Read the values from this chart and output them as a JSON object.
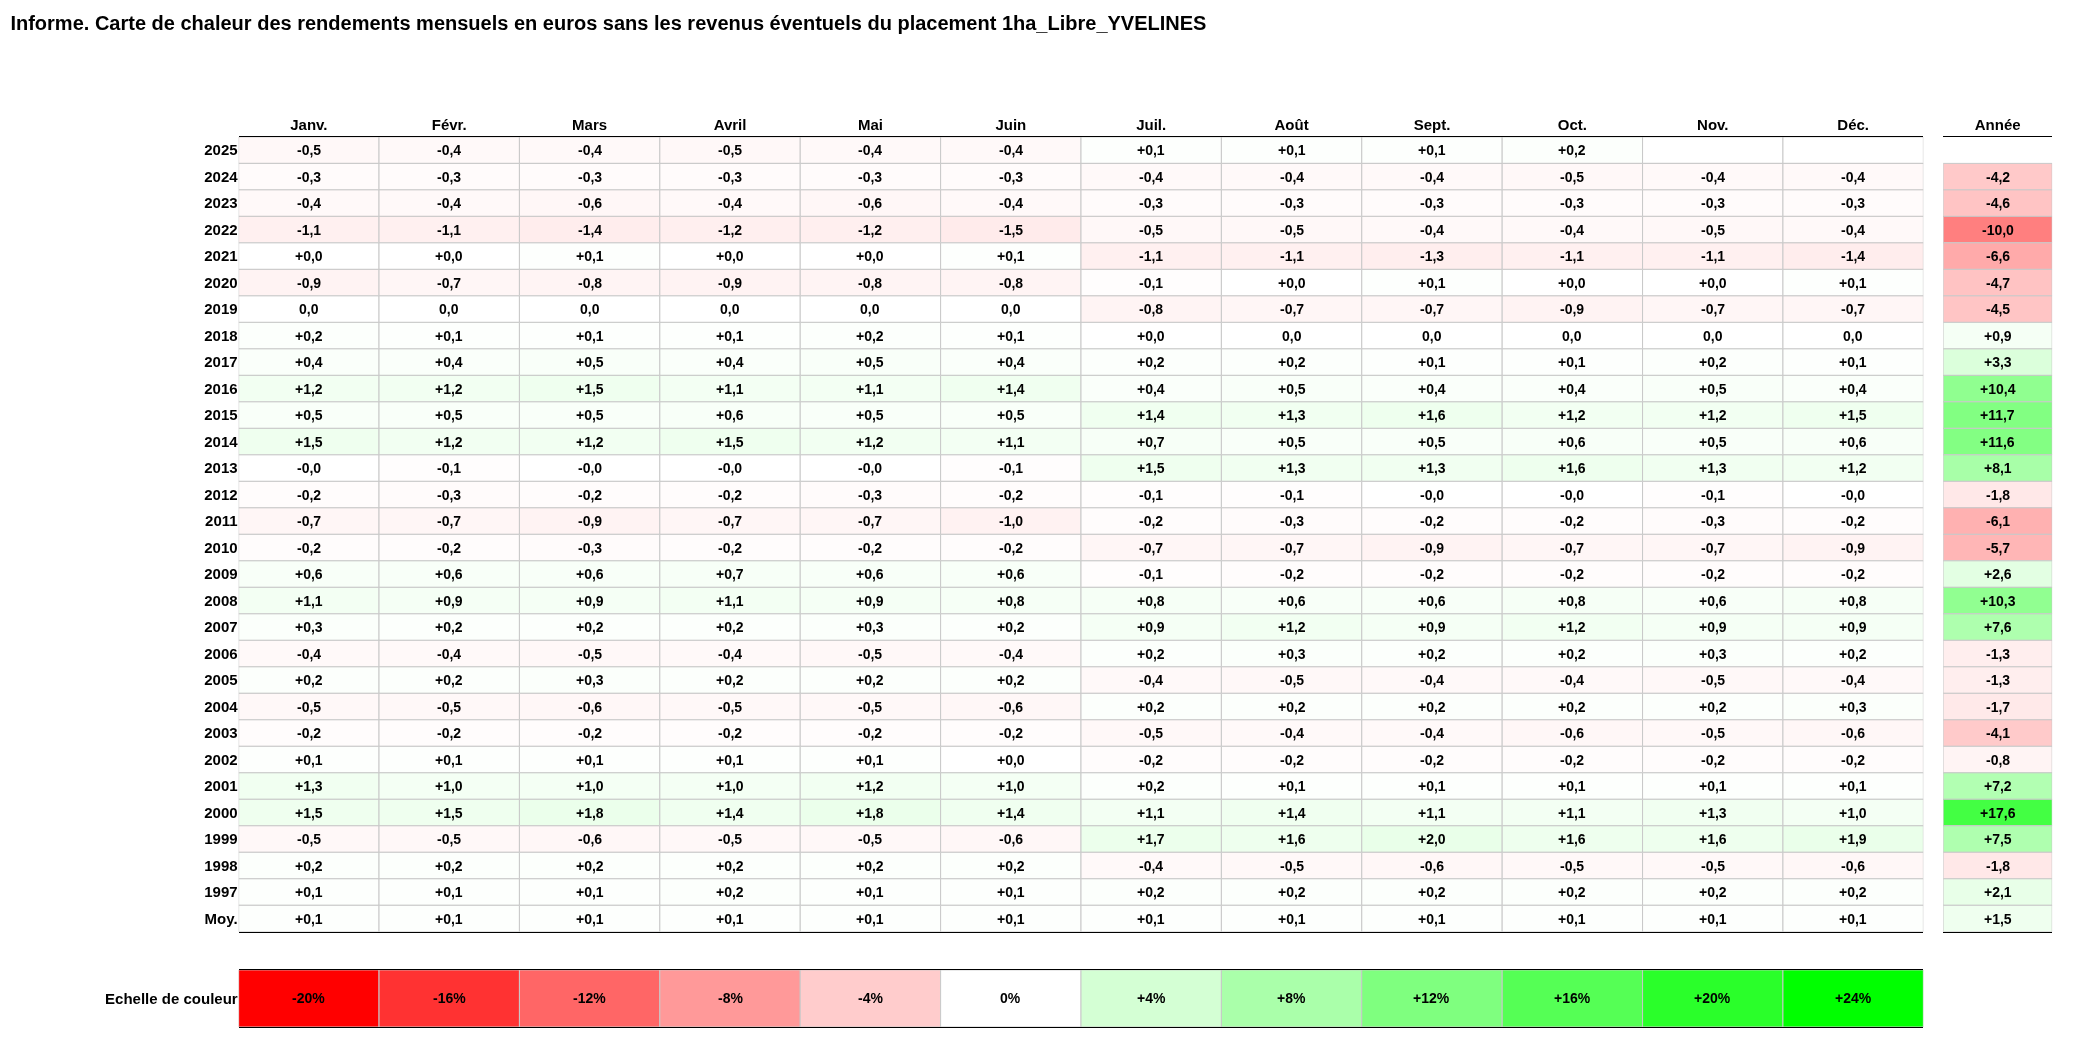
{
  "chart_data": [
    {
      "type": "heatmap",
      "title": "Informe. Carte de chaleur des rendements mensuels en euros sans les revenus éventuels du placement 1ha_Libre_YVELINES",
      "categories": [
        "Janv.",
        "Févr.",
        "Mars",
        "Avril",
        "Mai",
        "Juin",
        "Juil.",
        "Août",
        "Sept.",
        "Oct.",
        "Nov.",
        "Déc."
      ],
      "y_categories": [
        "2025",
        "2024",
        "2023",
        "2022",
        "2021",
        "2020",
        "2019",
        "2018",
        "2017",
        "2016",
        "2015",
        "2014",
        "2013",
        "2012",
        "2011",
        "2010",
        "2009",
        "2008",
        "2007",
        "2006",
        "2005",
        "2004",
        "2003",
        "2002",
        "2001",
        "2000",
        "1999",
        "1998",
        "1997",
        "Moy."
      ],
      "cells": [
        [
          -0.5,
          -0.4,
          -0.4,
          -0.5,
          -0.4,
          -0.4,
          0.1,
          0.1,
          0.1,
          0.2,
          null,
          null
        ],
        [
          -0.3,
          -0.3,
          -0.3,
          -0.3,
          -0.3,
          -0.3,
          -0.4,
          -0.4,
          -0.4,
          -0.5,
          -0.4,
          -0.4
        ],
        [
          -0.4,
          -0.4,
          -0.6,
          -0.4,
          -0.6,
          -0.4,
          -0.3,
          -0.3,
          -0.3,
          -0.3,
          -0.3,
          -0.3
        ],
        [
          -1.1,
          -1.1,
          -1.4,
          -1.2,
          -1.2,
          -1.5,
          -0.5,
          -0.5,
          -0.4,
          -0.4,
          -0.5,
          -0.4
        ],
        [
          0.0,
          0.0,
          0.1,
          0.0,
          0.0,
          0.1,
          -1.1,
          -1.1,
          -1.3,
          -1.1,
          -1.1,
          -1.4
        ],
        [
          -0.9,
          -0.7,
          -0.8,
          -0.9,
          -0.8,
          -0.8,
          -0.1,
          0.0,
          0.1,
          0.0,
          0.0,
          0.1
        ],
        [
          0.0,
          0.0,
          0.0,
          0.0,
          0.0,
          0.0,
          -0.8,
          -0.7,
          -0.7,
          -0.9,
          -0.7,
          -0.7
        ],
        [
          0.2,
          0.1,
          0.1,
          0.1,
          0.2,
          0.1,
          0.0,
          0.0,
          0.0,
          0.0,
          0.0,
          0.0
        ],
        [
          0.4,
          0.4,
          0.5,
          0.4,
          0.5,
          0.4,
          0.2,
          0.2,
          0.1,
          0.1,
          0.2,
          0.1
        ],
        [
          1.2,
          1.2,
          1.5,
          1.1,
          1.1,
          1.4,
          0.4,
          0.5,
          0.4,
          0.4,
          0.5,
          0.4
        ],
        [
          0.5,
          0.5,
          0.5,
          0.6,
          0.5,
          0.5,
          1.4,
          1.3,
          1.6,
          1.2,
          1.2,
          1.5
        ],
        [
          1.5,
          1.2,
          1.2,
          1.5,
          1.2,
          1.1,
          0.7,
          0.5,
          0.5,
          0.6,
          0.5,
          0.6
        ],
        [
          0.0,
          -0.1,
          0.0,
          0.0,
          0.0,
          -0.1,
          1.5,
          1.3,
          1.3,
          1.6,
          1.3,
          1.2
        ],
        [
          -0.2,
          -0.3,
          -0.2,
          -0.2,
          -0.3,
          -0.2,
          -0.1,
          -0.1,
          0.0,
          0.0,
          -0.1,
          0.0
        ],
        [
          -0.7,
          -0.7,
          -0.9,
          -0.7,
          -0.7,
          -1.0,
          -0.2,
          -0.3,
          -0.2,
          -0.2,
          -0.3,
          -0.2
        ],
        [
          -0.2,
          -0.2,
          -0.3,
          -0.2,
          -0.2,
          -0.2,
          -0.7,
          -0.7,
          -0.9,
          -0.7,
          -0.7,
          -0.9
        ],
        [
          0.6,
          0.6,
          0.6,
          0.7,
          0.6,
          0.6,
          -0.1,
          -0.2,
          -0.2,
          -0.2,
          -0.2,
          -0.2
        ],
        [
          1.1,
          0.9,
          0.9,
          1.1,
          0.9,
          0.8,
          0.8,
          0.6,
          0.6,
          0.8,
          0.6,
          0.8
        ],
        [
          0.3,
          0.2,
          0.2,
          0.2,
          0.3,
          0.2,
          0.9,
          1.2,
          0.9,
          1.2,
          0.9,
          0.9
        ],
        [
          -0.4,
          -0.4,
          -0.5,
          -0.4,
          -0.5,
          -0.4,
          0.2,
          0.3,
          0.2,
          0.2,
          0.3,
          0.2
        ],
        [
          0.2,
          0.2,
          0.3,
          0.2,
          0.2,
          0.2,
          -0.4,
          -0.5,
          -0.4,
          -0.4,
          -0.5,
          -0.4
        ],
        [
          -0.5,
          -0.5,
          -0.6,
          -0.5,
          -0.5,
          -0.6,
          0.2,
          0.2,
          0.2,
          0.2,
          0.2,
          0.3
        ],
        [
          -0.2,
          -0.2,
          -0.2,
          -0.2,
          -0.2,
          -0.2,
          -0.5,
          -0.4,
          -0.4,
          -0.6,
          -0.5,
          -0.6
        ],
        [
          0.1,
          0.1,
          0.1,
          0.1,
          0.1,
          0.0,
          -0.2,
          -0.2,
          -0.2,
          -0.2,
          -0.2,
          -0.2
        ],
        [
          1.3,
          1.0,
          1.0,
          1.0,
          1.2,
          1.0,
          0.2,
          0.1,
          0.1,
          0.1,
          0.1,
          0.1
        ],
        [
          1.5,
          1.5,
          1.8,
          1.4,
          1.8,
          1.4,
          1.1,
          1.4,
          1.1,
          1.1,
          1.3,
          1.0
        ],
        [
          -0.5,
          -0.5,
          -0.6,
          -0.5,
          -0.5,
          -0.6,
          1.7,
          1.6,
          2.0,
          1.6,
          1.6,
          1.9
        ],
        [
          0.2,
          0.2,
          0.2,
          0.2,
          0.2,
          0.2,
          -0.4,
          -0.5,
          -0.6,
          -0.5,
          -0.5,
          -0.6
        ],
        [
          0.1,
          0.1,
          0.1,
          0.2,
          0.1,
          0.1,
          0.2,
          0.2,
          0.2,
          0.2,
          0.2,
          0.2
        ],
        [
          0.1,
          0.1,
          0.1,
          0.1,
          0.1,
          0.1,
          0.1,
          0.1,
          0.1,
          0.1,
          0.1,
          0.1
        ]
      ],
      "cell_labels": [
        [
          "-0,5",
          "-0,4",
          "-0,4",
          "-0,5",
          "-0,4",
          "-0,4",
          "+0,1",
          "+0,1",
          "+0,1",
          "+0,2",
          null,
          null
        ],
        [
          "-0,3",
          "-0,3",
          "-0,3",
          "-0,3",
          "-0,3",
          "-0,3",
          "-0,4",
          "-0,4",
          "-0,4",
          "-0,5",
          "-0,4",
          "-0,4"
        ],
        [
          "-0,4",
          "-0,4",
          "-0,6",
          "-0,4",
          "-0,6",
          "-0,4",
          "-0,3",
          "-0,3",
          "-0,3",
          "-0,3",
          "-0,3",
          "-0,3"
        ],
        [
          "-1,1",
          "-1,1",
          "-1,4",
          "-1,2",
          "-1,2",
          "-1,5",
          "-0,5",
          "-0,5",
          "-0,4",
          "-0,4",
          "-0,5",
          "-0,4"
        ],
        [
          "+0,0",
          "+0,0",
          "+0,1",
          "+0,0",
          "+0,0",
          "+0,1",
          "-1,1",
          "-1,1",
          "-1,3",
          "-1,1",
          "-1,1",
          "-1,4"
        ],
        [
          "-0,9",
          "-0,7",
          "-0,8",
          "-0,9",
          "-0,8",
          "-0,8",
          "-0,1",
          "+0,0",
          "+0,1",
          "+0,0",
          "+0,0",
          "+0,1"
        ],
        [
          "0,0",
          "0,0",
          "0,0",
          "0,0",
          "0,0",
          "0,0",
          "-0,8",
          "-0,7",
          "-0,7",
          "-0,9",
          "-0,7",
          "-0,7"
        ],
        [
          "+0,2",
          "+0,1",
          "+0,1",
          "+0,1",
          "+0,2",
          "+0,1",
          "+0,0",
          "0,0",
          "0,0",
          "0,0",
          "0,0",
          "0,0"
        ],
        [
          "+0,4",
          "+0,4",
          "+0,5",
          "+0,4",
          "+0,5",
          "+0,4",
          "+0,2",
          "+0,2",
          "+0,1",
          "+0,1",
          "+0,2",
          "+0,1"
        ],
        [
          "+1,2",
          "+1,2",
          "+1,5",
          "+1,1",
          "+1,1",
          "+1,4",
          "+0,4",
          "+0,5",
          "+0,4",
          "+0,4",
          "+0,5",
          "+0,4"
        ],
        [
          "+0,5",
          "+0,5",
          "+0,5",
          "+0,6",
          "+0,5",
          "+0,5",
          "+1,4",
          "+1,3",
          "+1,6",
          "+1,2",
          "+1,2",
          "+1,5"
        ],
        [
          "+1,5",
          "+1,2",
          "+1,2",
          "+1,5",
          "+1,2",
          "+1,1",
          "+0,7",
          "+0,5",
          "+0,5",
          "+0,6",
          "+0,5",
          "+0,6"
        ],
        [
          "-0,0",
          "-0,1",
          "-0,0",
          "-0,0",
          "-0,0",
          "-0,1",
          "+1,5",
          "+1,3",
          "+1,3",
          "+1,6",
          "+1,3",
          "+1,2"
        ],
        [
          "-0,2",
          "-0,3",
          "-0,2",
          "-0,2",
          "-0,3",
          "-0,2",
          "-0,1",
          "-0,1",
          "-0,0",
          "-0,0",
          "-0,1",
          "-0,0"
        ],
        [
          "-0,7",
          "-0,7",
          "-0,9",
          "-0,7",
          "-0,7",
          "-1,0",
          "-0,2",
          "-0,3",
          "-0,2",
          "-0,2",
          "-0,3",
          "-0,2"
        ],
        [
          "-0,2",
          "-0,2",
          "-0,3",
          "-0,2",
          "-0,2",
          "-0,2",
          "-0,7",
          "-0,7",
          "-0,9",
          "-0,7",
          "-0,7",
          "-0,9"
        ],
        [
          "+0,6",
          "+0,6",
          "+0,6",
          "+0,7",
          "+0,6",
          "+0,6",
          "-0,1",
          "-0,2",
          "-0,2",
          "-0,2",
          "-0,2",
          "-0,2"
        ],
        [
          "+1,1",
          "+0,9",
          "+0,9",
          "+1,1",
          "+0,9",
          "+0,8",
          "+0,8",
          "+0,6",
          "+0,6",
          "+0,8",
          "+0,6",
          "+0,8"
        ],
        [
          "+0,3",
          "+0,2",
          "+0,2",
          "+0,2",
          "+0,3",
          "+0,2",
          "+0,9",
          "+1,2",
          "+0,9",
          "+1,2",
          "+0,9",
          "+0,9"
        ],
        [
          "-0,4",
          "-0,4",
          "-0,5",
          "-0,4",
          "-0,5",
          "-0,4",
          "+0,2",
          "+0,3",
          "+0,2",
          "+0,2",
          "+0,3",
          "+0,2"
        ],
        [
          "+0,2",
          "+0,2",
          "+0,3",
          "+0,2",
          "+0,2",
          "+0,2",
          "-0,4",
          "-0,5",
          "-0,4",
          "-0,4",
          "-0,5",
          "-0,4"
        ],
        [
          "-0,5",
          "-0,5",
          "-0,6",
          "-0,5",
          "-0,5",
          "-0,6",
          "+0,2",
          "+0,2",
          "+0,2",
          "+0,2",
          "+0,2",
          "+0,3"
        ],
        [
          "-0,2",
          "-0,2",
          "-0,2",
          "-0,2",
          "-0,2",
          "-0,2",
          "-0,5",
          "-0,4",
          "-0,4",
          "-0,6",
          "-0,5",
          "-0,6"
        ],
        [
          "+0,1",
          "+0,1",
          "+0,1",
          "+0,1",
          "+0,1",
          "+0,0",
          "-0,2",
          "-0,2",
          "-0,2",
          "-0,2",
          "-0,2",
          "-0,2"
        ],
        [
          "+1,3",
          "+1,0",
          "+1,0",
          "+1,0",
          "+1,2",
          "+1,0",
          "+0,2",
          "+0,1",
          "+0,1",
          "+0,1",
          "+0,1",
          "+0,1"
        ],
        [
          "+1,5",
          "+1,5",
          "+1,8",
          "+1,4",
          "+1,8",
          "+1,4",
          "+1,1",
          "+1,4",
          "+1,1",
          "+1,1",
          "+1,3",
          "+1,0"
        ],
        [
          "-0,5",
          "-0,5",
          "-0,6",
          "-0,5",
          "-0,5",
          "-0,6",
          "+1,7",
          "+1,6",
          "+2,0",
          "+1,6",
          "+1,6",
          "+1,9"
        ],
        [
          "+0,2",
          "+0,2",
          "+0,2",
          "+0,2",
          "+0,2",
          "+0,2",
          "-0,4",
          "-0,5",
          "-0,6",
          "-0,5",
          "-0,5",
          "-0,6"
        ],
        [
          "+0,1",
          "+0,1",
          "+0,1",
          "+0,2",
          "+0,1",
          "+0,1",
          "+0,2",
          "+0,2",
          "+0,2",
          "+0,2",
          "+0,2",
          "+0,2"
        ],
        [
          "+0,1",
          "+0,1",
          "+0,1",
          "+0,1",
          "+0,1",
          "+0,1",
          "+0,1",
          "+0,1",
          "+0,1",
          "+0,1",
          "+0,1",
          "+0,1"
        ]
      ]
    },
    {
      "type": "heatmap",
      "categories": [
        "Année"
      ],
      "tick_labels": "x",
      "y_categories": [
        null,
        null,
        null,
        null,
        null,
        null,
        null,
        null,
        null,
        null,
        null,
        null,
        null,
        null,
        null,
        null,
        null,
        null,
        null,
        null,
        null,
        null,
        null,
        null,
        null,
        null,
        null,
        null,
        null
      ],
      "cells": [
        [
          -4.2
        ],
        [
          -4.6
        ],
        [
          -10.0
        ],
        [
          -6.6
        ],
        [
          -4.7
        ],
        [
          -4.5
        ],
        [
          0.9
        ],
        [
          3.3
        ],
        [
          10.4
        ],
        [
          11.7
        ],
        [
          11.6
        ],
        [
          8.1
        ],
        [
          -1.8
        ],
        [
          -6.1
        ],
        [
          -5.7
        ],
        [
          2.6
        ],
        [
          10.3
        ],
        [
          7.6
        ],
        [
          -1.3
        ],
        [
          -1.3
        ],
        [
          -1.7
        ],
        [
          -4.1
        ],
        [
          -0.8
        ],
        [
          7.2
        ],
        [
          17.6
        ],
        [
          7.5
        ],
        [
          -1.8
        ],
        [
          2.1
        ],
        [
          1.5
        ]
      ],
      "cell_labels": [
        [
          "-4,2"
        ],
        [
          "-4,6"
        ],
        [
          "-10,0"
        ],
        [
          "-6,6"
        ],
        [
          "-4,7"
        ],
        [
          "-4,5"
        ],
        [
          "+0,9"
        ],
        [
          "+3,3"
        ],
        [
          "+10,4"
        ],
        [
          "+11,7"
        ],
        [
          "+11,6"
        ],
        [
          "+8,1"
        ],
        [
          "-1,8"
        ],
        [
          "-6,1"
        ],
        [
          "-5,7"
        ],
        [
          "+2,6"
        ],
        [
          "+10,3"
        ],
        [
          "+7,6"
        ],
        [
          "-1,3"
        ],
        [
          "-1,3"
        ],
        [
          "-1,7"
        ],
        [
          "-4,1"
        ],
        [
          "-0,8"
        ],
        [
          "+7,2"
        ],
        [
          "+17,6"
        ],
        [
          "+7,5"
        ],
        [
          "-1,8"
        ],
        [
          "+2,1"
        ],
        [
          "+1,5"
        ]
      ]
    },
    {
      "type": "heatmap",
      "categories": [
        null,
        null,
        null,
        null,
        null,
        null,
        null,
        null,
        null,
        null,
        null,
        null
      ],
      "tick_labels": "y",
      "y_categories": [
        "Echelle de couleur"
      ],
      "cells": [
        [
          -20,
          -16,
          -12,
          -8,
          -4,
          0,
          4,
          8,
          12,
          16,
          20,
          24
        ]
      ],
      "cell_labels": [
        [
          "-20%",
          "-16%",
          "-12%",
          "-8%",
          "-4%",
          "0%",
          "+4%",
          "+8%",
          "+12%",
          "+16%",
          "+20%",
          "+24%"
        ]
      ]
    }
  ]
}
